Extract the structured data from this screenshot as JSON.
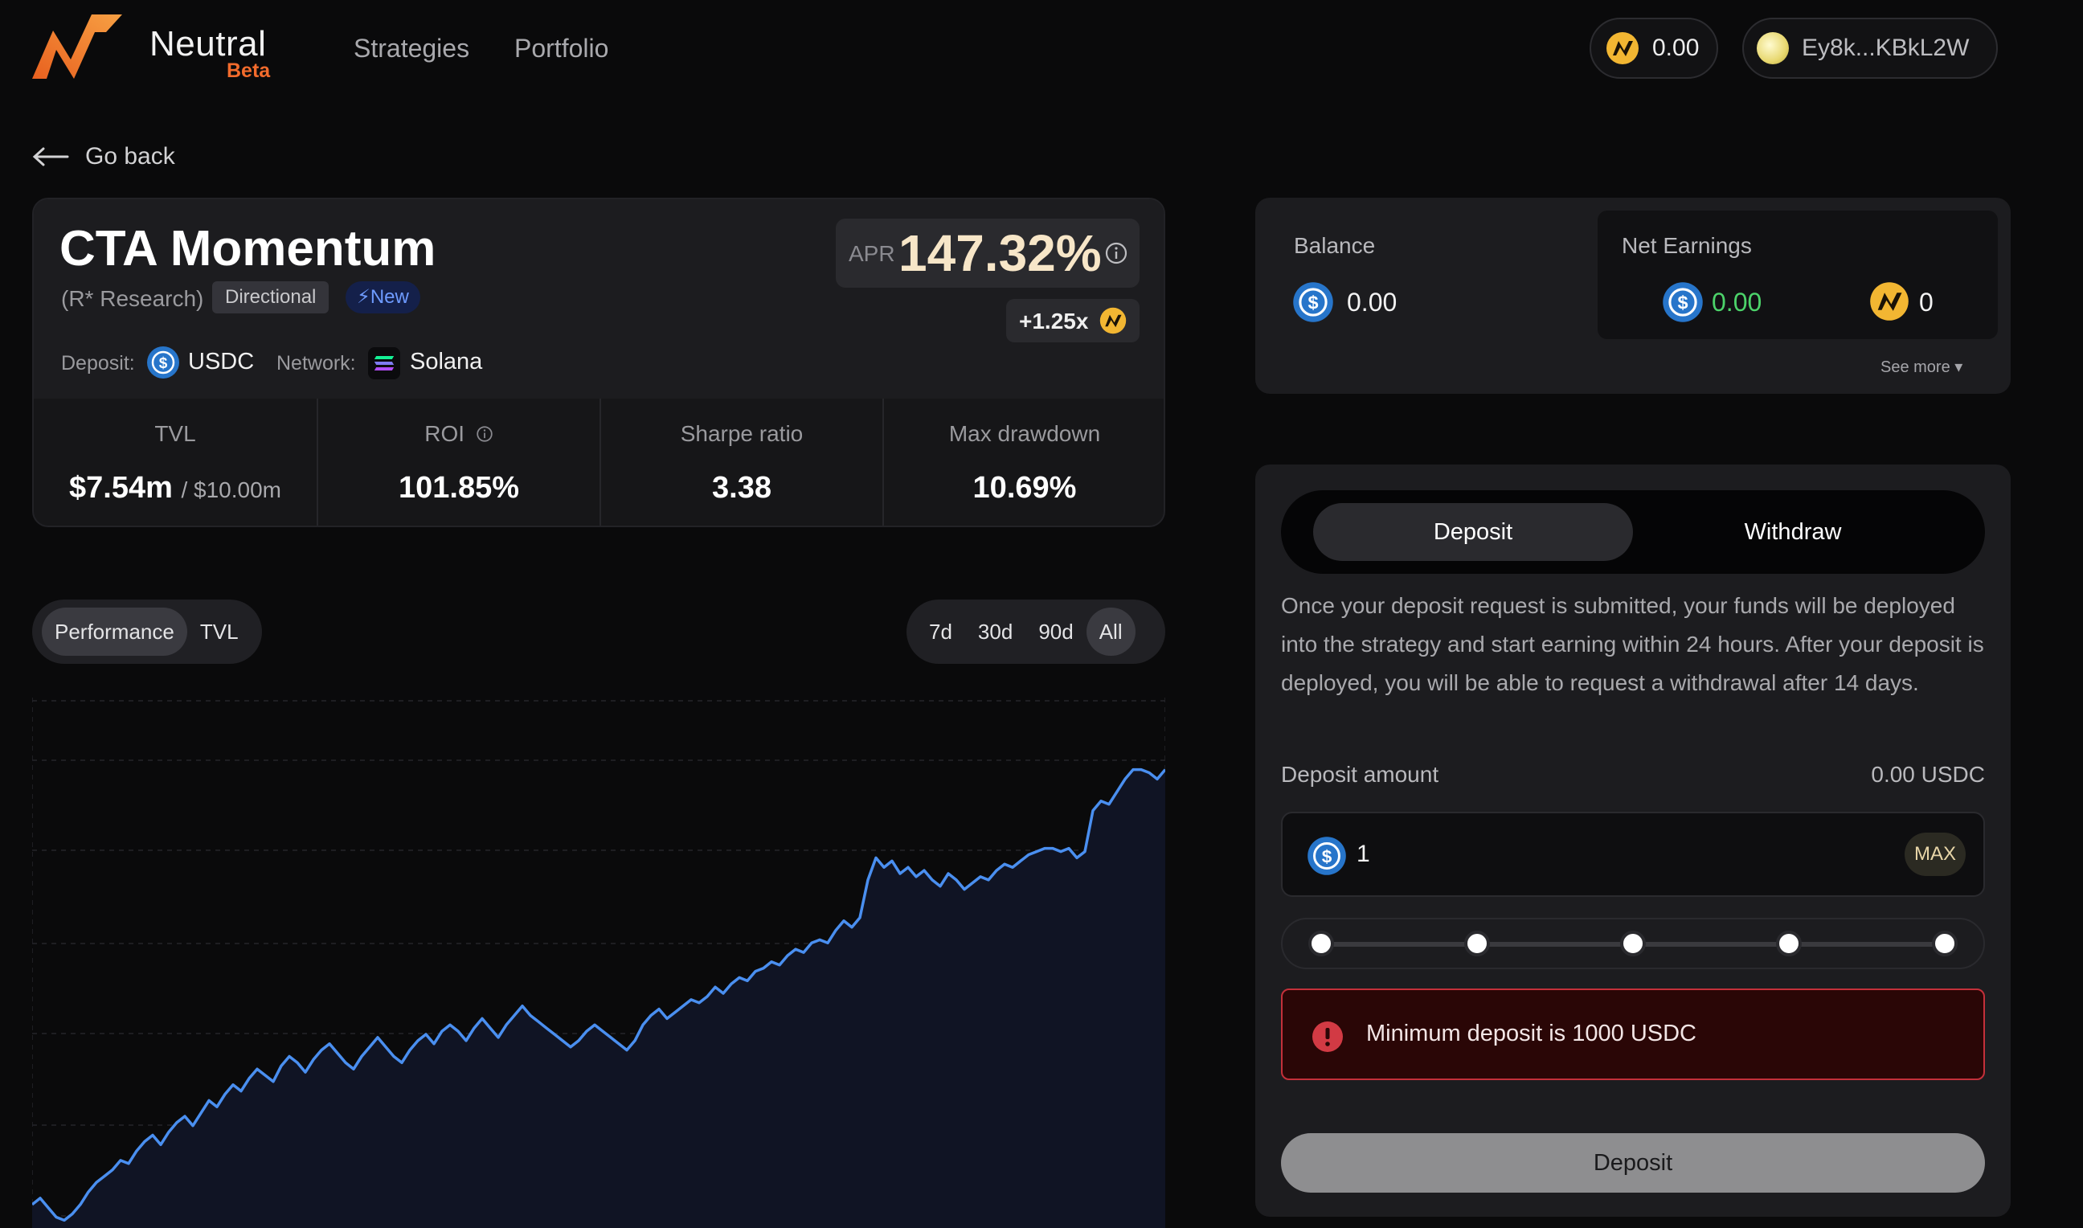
{
  "brand": {
    "name": "Neutral",
    "badge": "Beta"
  },
  "nav": {
    "items": [
      "Strategies",
      "Portfolio"
    ]
  },
  "header": {
    "points_balance": "0.00",
    "wallet_address": "Ey8k...KBkL2W"
  },
  "back": {
    "label": "Go back"
  },
  "strategy": {
    "title": "CTA Momentum",
    "provider": "(R* Research)",
    "tag_type": "Directional",
    "tag_new": "⚡New",
    "deposit_label": "Deposit:",
    "deposit_asset": "USDC",
    "network_label": "Network:",
    "network": "Solana",
    "apr_label": "APR",
    "apr_value": "147.32%",
    "boost": "+1.25x",
    "stats": {
      "tvl_label": "TVL",
      "tvl_value": "$7.54m",
      "tvl_cap": "/ $10.00m",
      "roi_label": "ROI",
      "roi_value": "101.85%",
      "sharpe_label": "Sharpe ratio",
      "sharpe_value": "3.38",
      "drawdown_label": "Max drawdown",
      "drawdown_value": "10.69%"
    }
  },
  "chart_controls": {
    "metric_tabs": [
      "Performance",
      "TVL"
    ],
    "active_metric": "Performance",
    "ranges": [
      "7d",
      "30d",
      "90d",
      "All"
    ],
    "active_range": "All"
  },
  "chart_data": {
    "type": "area",
    "title": "",
    "xlabel": "",
    "ylabel": "",
    "grid": true,
    "color": "#4a8ff0",
    "series": [
      {
        "name": "Performance",
        "values": [
          5,
          7,
          4,
          1,
          0,
          2,
          5,
          9,
          12,
          14,
          16,
          19,
          18,
          22,
          25,
          27,
          24,
          28,
          31,
          33,
          30,
          34,
          38,
          36,
          40,
          43,
          41,
          45,
          48,
          46,
          44,
          49,
          52,
          50,
          47,
          51,
          54,
          56,
          53,
          50,
          48,
          52,
          55,
          58,
          55,
          52,
          50,
          54,
          57,
          59,
          56,
          60,
          62,
          60,
          57,
          61,
          64,
          61,
          58,
          62,
          65,
          68,
          65,
          63,
          61,
          59,
          57,
          55,
          57,
          60,
          62,
          60,
          58,
          56,
          54,
          57,
          62,
          65,
          67,
          64,
          66,
          68,
          70,
          69,
          71,
          74,
          72,
          75,
          77,
          76,
          79,
          80,
          82,
          81,
          84,
          86,
          85,
          88,
          89,
          88,
          92,
          95,
          93,
          96,
          108,
          115,
          112,
          114,
          110,
          112,
          109,
          111,
          108,
          106,
          110,
          108,
          105,
          107,
          109,
          108,
          111,
          113,
          112,
          114,
          116,
          117,
          118,
          118,
          117,
          118,
          115,
          117,
          130,
          133,
          132,
          136,
          140,
          143,
          143,
          142,
          140,
          143
        ]
      }
    ]
  },
  "balance_panel": {
    "balance_label": "Balance",
    "balance_value": "0.00",
    "net_earnings_label": "Net Earnings",
    "net_earnings_usdc": "0.00",
    "net_earnings_points": "0",
    "see_more": "See more ▾"
  },
  "deposit_panel": {
    "tabs": [
      "Deposit",
      "Withdraw"
    ],
    "active_tab": "Deposit",
    "description": "Once your deposit request is submitted, your funds will be deployed into the strategy and start earning within 24 hours. After your deposit is deployed, you will be able to request a withdrawal after 14 days.",
    "amount_label": "Deposit amount",
    "amount_balance": "0.00 USDC",
    "amount_value": "1",
    "max_label": "MAX",
    "slider_steps": [
      0,
      25,
      50,
      75,
      100
    ],
    "error": "Minimum deposit is 1000 USDC",
    "submit_label": "Deposit"
  },
  "colors": {
    "accent_orange": "#f26b2c",
    "usdc_blue": "#2775ca",
    "positive_green": "#4cd36a",
    "error_red": "#c4303a",
    "chart_line": "#4a8ff0"
  }
}
